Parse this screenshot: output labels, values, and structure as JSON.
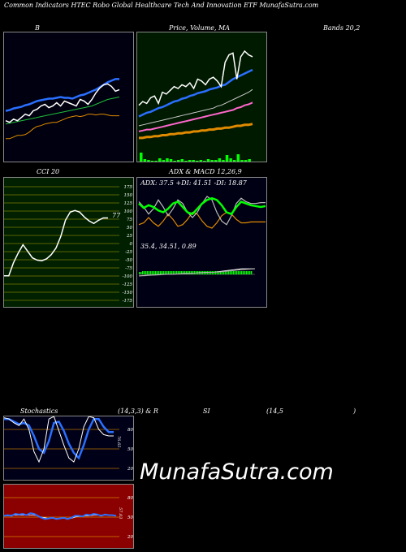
{
  "header": {
    "title": "Common  Indicators HTEC Robo  Global Healthcare   Tech And Innovation ETF MunafaSutra.com",
    "label_b": "B",
    "label_price": "Price,  Volume,  MA",
    "label_bands": "Bands 20,2",
    "label_cci": "CCI 20",
    "label_adx": "ADX  & MACD 12,26,9",
    "label_stoch": "Stochastics",
    "label_stoch_params": "(14,3,3) & R",
    "label_si": "SI",
    "label_rsi_params": "(14,5",
    "label_paren": ")"
  },
  "watermark": "MunafaSutra.com",
  "colors": {
    "bands_bg": "#000010",
    "price_bg": "#001a00",
    "cci_bg": "#002000",
    "adx_bg": "#000014",
    "stoch_bg": "#000018",
    "rsi_bg": "#8b0000",
    "white": "#ffffff",
    "blue": "#2a6fff",
    "green": "#1fbf3a",
    "orange": "#e08a00",
    "bright_green": "#00ff00",
    "pink": "#ff66cc"
  },
  "chart_data": [
    {
      "type": "line",
      "name_panel": "bollinger-bands",
      "x": [
        1,
        2,
        3,
        4,
        5,
        6,
        7,
        8,
        9,
        10,
        11,
        12,
        13,
        14,
        15,
        16,
        17,
        18,
        19,
        20,
        21,
        22,
        23,
        24,
        25,
        26,
        27,
        28,
        29,
        30
      ],
      "series": [
        {
          "values": [
            148,
            150,
            146,
            148,
            144,
            140,
            142,
            136,
            134,
            130,
            128,
            132,
            130,
            126,
            130,
            124,
            126,
            128,
            130,
            122,
            124,
            128,
            122,
            114,
            108,
            104,
            103,
            106,
            112,
            110
          ]
        },
        {
          "values": [
            152,
            151,
            150,
            149,
            148,
            147,
            146,
            145,
            144,
            143,
            142,
            141,
            140,
            139,
            138,
            137,
            136,
            135,
            134,
            133,
            132,
            131,
            130,
            128,
            126,
            124,
            122,
            121,
            120,
            119
          ]
        },
        {
          "values": [
            136,
            135,
            133,
            132,
            131,
            129,
            128,
            126,
            124,
            123,
            122,
            121,
            121,
            120,
            119,
            120,
            120,
            121,
            119,
            117,
            116,
            114,
            112,
            110,
            107,
            104,
            101,
            99,
            97,
            97
          ]
        },
        {
          "values": [
            170,
            170,
            168,
            166,
            166,
            165,
            162,
            158,
            155,
            154,
            152,
            151,
            150,
            150,
            148,
            146,
            144,
            143,
            142,
            143,
            142,
            140,
            140,
            141,
            140,
            140,
            141,
            142,
            142,
            142
          ]
        }
      ],
      "ylim": [
        40,
        200
      ]
    },
    {
      "type": "line",
      "name_panel": "price-volume-ma",
      "x": [
        1,
        2,
        3,
        4,
        5,
        6,
        7,
        8,
        9,
        10,
        11,
        12,
        13,
        14,
        15,
        16,
        17,
        18,
        19,
        20,
        21,
        22,
        23,
        24,
        25,
        26,
        27,
        28,
        29,
        30
      ],
      "series": [
        {
          "values": [
            138,
            134,
            136,
            130,
            128,
            136,
            124,
            126,
            122,
            118,
            120,
            116,
            118,
            114,
            120,
            110,
            112,
            116,
            110,
            108,
            112,
            118,
            92,
            84,
            82,
            110,
            86,
            80,
            84,
            86
          ]
        },
        {
          "values": [
            150,
            148,
            146,
            145,
            143,
            141,
            140,
            138,
            136,
            134,
            133,
            131,
            130,
            128,
            127,
            125,
            124,
            123,
            121,
            120,
            119,
            117,
            116,
            113,
            110,
            108,
            106,
            104,
            102,
            100
          ]
        },
        {
          "values": [
            160,
            159,
            158,
            157,
            156,
            155,
            154,
            153,
            152,
            151,
            150,
            149,
            148,
            147,
            146,
            145,
            144,
            143,
            142,
            141,
            139,
            138,
            136,
            134,
            132,
            130,
            128,
            126,
            124,
            121
          ]
        },
        {
          "values": [
            166,
            165,
            164,
            164,
            163,
            162,
            161,
            160,
            159,
            158,
            157,
            156,
            155,
            154,
            153,
            152,
            151,
            150,
            149,
            148,
            147,
            146,
            145,
            144,
            143,
            141,
            140,
            138,
            137,
            135
          ]
        },
        {
          "values": [
            173,
            173,
            172,
            172,
            171,
            171,
            170,
            170,
            169,
            169,
            168,
            168,
            167,
            167,
            166,
            166,
            165,
            165,
            164,
            164,
            163,
            163,
            162,
            162,
            161,
            160,
            160,
            159,
            159,
            158
          ]
        }
      ],
      "volume": [
        12,
        4,
        3,
        2,
        2,
        5,
        3,
        5,
        4,
        2,
        3,
        4,
        2,
        3,
        3,
        2,
        3,
        2,
        4,
        3,
        3,
        5,
        3,
        9,
        5,
        3,
        10,
        3,
        3,
        4
      ],
      "ylim": [
        60,
        200
      ]
    },
    {
      "type": "line",
      "name_panel": "cci",
      "title": "CCI 20",
      "y_ticks": [
        175,
        150,
        125,
        100,
        75,
        50,
        25,
        0,
        -25,
        -50,
        -75,
        -100,
        -125,
        -150,
        -175
      ],
      "tick_labels": [
        "175",
        "150",
        "125",
        "100",
        "75",
        "50",
        "25",
        "0",
        "-25",
        "-50",
        "-75",
        "-100",
        "-125",
        "-150",
        "-175"
      ],
      "series": [
        {
          "values": [
            -100,
            -100,
            -60,
            -30,
            -5,
            -25,
            -45,
            -52,
            -54,
            -48,
            -35,
            -15,
            20,
            70,
            95,
            100,
            95,
            80,
            68,
            60,
            70,
            77,
            77
          ]
        }
      ],
      "last_label": "77",
      "ylim": [
        -200,
        200
      ]
    },
    {
      "type": "line",
      "name_panel": "adx-macd",
      "title": "ADX  & MACD 12,26,9",
      "adx_label": "ADX: 37.5  +DI: 41.51 -DI: 18.87",
      "macd_label": "35.4,  34.51,  0.89",
      "series": [
        {
          "values": [
            40,
            35,
            38,
            36,
            32,
            30,
            34,
            40,
            42,
            36,
            30,
            28,
            34,
            40,
            44,
            46,
            44,
            38,
            30,
            28,
            36,
            42,
            40,
            38,
            37,
            36,
            37
          ]
        },
        {
          "values": [
            42,
            36,
            28,
            34,
            44,
            36,
            26,
            34,
            44,
            40,
            30,
            24,
            30,
            40,
            48,
            44,
            30,
            20,
            16,
            26,
            40,
            46,
            42,
            40,
            40,
            41,
            41
          ]
        },
        {
          "values": [
            16,
            18,
            24,
            18,
            14,
            20,
            28,
            22,
            14,
            16,
            22,
            30,
            28,
            20,
            14,
            12,
            18,
            26,
            30,
            28,
            22,
            18,
            18,
            19,
            19,
            19,
            19
          ]
        }
      ],
      "macd_hist": [
        3,
        3,
        4,
        4,
        4,
        4,
        4,
        4,
        4,
        4,
        4,
        4,
        4,
        4,
        4,
        4,
        4,
        4,
        4,
        4,
        4,
        4,
        4,
        4,
        4,
        4,
        4,
        4,
        4,
        4,
        4,
        4,
        4,
        4,
        4,
        4,
        4,
        4,
        4,
        4,
        4,
        4,
        4,
        4,
        4,
        4,
        4,
        4,
        4,
        4,
        4,
        4,
        4,
        4,
        4,
        4,
        4,
        4,
        4,
        4,
        4,
        4,
        4,
        4,
        4,
        4,
        4,
        4,
        4,
        4
      ],
      "ylim": [
        0,
        60
      ]
    },
    {
      "type": "line",
      "name_panel": "stochastics",
      "tick_labels": [
        "80",
        "50",
        "20"
      ],
      "last_label": "76.65",
      "series": [
        {
          "values": [
            98,
            96,
            90,
            86,
            96,
            80,
            46,
            30,
            50,
            96,
            100,
            78,
            56,
            36,
            30,
            50,
            84,
            100,
            98,
            80,
            72,
            70,
            70
          ]
        },
        {
          "values": [
            96,
            96,
            92,
            88,
            90,
            86,
            70,
            50,
            44,
            62,
            90,
            92,
            78,
            58,
            44,
            36,
            56,
            80,
            96,
            96,
            84,
            76,
            76
          ]
        }
      ],
      "ylim": [
        0,
        100
      ]
    },
    {
      "type": "line",
      "name_panel": "rsi",
      "tick_labels": [
        "80",
        "50",
        "20"
      ],
      "last_label": "57.03",
      "series": [
        {
          "values": [
            52,
            53,
            52,
            55,
            54,
            55,
            53,
            56,
            55,
            52,
            49,
            47,
            48,
            49,
            47,
            48,
            49,
            47,
            49,
            52,
            52,
            51,
            54,
            53,
            55,
            54,
            52,
            54,
            53,
            53,
            52
          ]
        },
        {
          "values": [
            52,
            52,
            53,
            53,
            53,
            53,
            53,
            53,
            53,
            52,
            50,
            49,
            48,
            48,
            48,
            48,
            48,
            48,
            48,
            50,
            51,
            51,
            52,
            52,
            53,
            53,
            53,
            53,
            53,
            53,
            52
          ]
        }
      ],
      "ylim": [
        0,
        100
      ]
    }
  ]
}
